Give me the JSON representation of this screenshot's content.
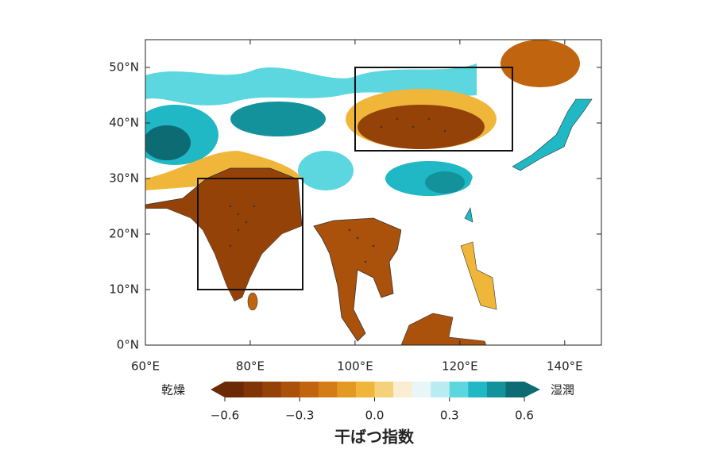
{
  "map": {
    "xlim": [
      60,
      147
    ],
    "ylim": [
      0,
      55
    ],
    "xticks": [
      {
        "value": 60,
        "label": "60°E"
      },
      {
        "value": 80,
        "label": "80°E"
      },
      {
        "value": 100,
        "label": "100°E"
      },
      {
        "value": 120,
        "label": "120°E"
      },
      {
        "value": 140,
        "label": "140°E"
      }
    ],
    "yticks": [
      {
        "value": 0,
        "label": "0°N"
      },
      {
        "value": 10,
        "label": "10°N"
      },
      {
        "value": 20,
        "label": "20°N"
      },
      {
        "value": 30,
        "label": "30°N"
      },
      {
        "value": 40,
        "label": "40°N"
      },
      {
        "value": 50,
        "label": "50°N"
      }
    ]
  },
  "colorbar": {
    "title": "干ばつ指数",
    "low_label": "乾燥",
    "high_label": "湿潤",
    "clim": [
      -0.6,
      0.6
    ],
    "ticks": [
      {
        "value": -0.6,
        "label": "−0.6"
      },
      {
        "value": -0.3,
        "label": "−0.3"
      },
      {
        "value": 0,
        "label": "0.0"
      },
      {
        "value": 0.3,
        "label": "0.3"
      },
      {
        "value": 0.6,
        "label": "0.6"
      }
    ],
    "colors": [
      "#6b2a05",
      "#7f3506",
      "#954208",
      "#aa510c",
      "#c0640f",
      "#d47c16",
      "#e49a22",
      "#efb63a",
      "#f5d27a",
      "#fbeed0",
      "#e8f6f8",
      "#b8ecf0",
      "#5cd6df",
      "#1fb8c4",
      "#14929c",
      "#0c6b73"
    ]
  }
}
